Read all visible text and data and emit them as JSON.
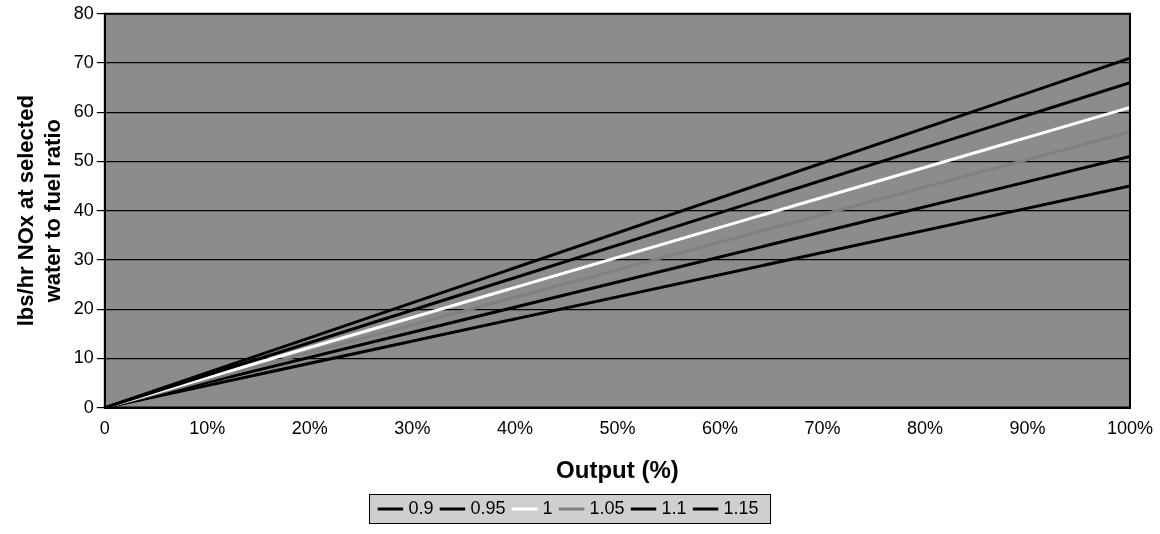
{
  "chart_data": {
    "type": "line",
    "xlabel": "Output (%)",
    "ylabel": "lbs/hr NOx at selected water to fuel ratio",
    "x": [
      0,
      100
    ],
    "series": [
      {
        "name": "0.9",
        "color": "#000000",
        "values": [
          0,
          71
        ]
      },
      {
        "name": "0.95",
        "color": "#000000",
        "values": [
          0,
          66
        ]
      },
      {
        "name": "1",
        "color": "#ffffff",
        "values": [
          0,
          61
        ]
      },
      {
        "name": "1.05",
        "color": "#808080",
        "values": [
          0,
          56
        ]
      },
      {
        "name": "1.1",
        "color": "#000000",
        "values": [
          0,
          51
        ]
      },
      {
        "name": "1.15",
        "color": "#000000",
        "values": [
          0,
          45
        ]
      }
    ],
    "xlim": [
      0,
      100
    ],
    "xticks": [
      {
        "value": 0,
        "label": "0"
      },
      {
        "value": 10,
        "label": "10%"
      },
      {
        "value": 20,
        "label": "20%"
      },
      {
        "value": 30,
        "label": "30%"
      },
      {
        "value": 40,
        "label": "40%"
      },
      {
        "value": 50,
        "label": "50%"
      },
      {
        "value": 60,
        "label": "60%"
      },
      {
        "value": 70,
        "label": "70%"
      },
      {
        "value": 80,
        "label": "80%"
      },
      {
        "value": 90,
        "label": "90%"
      },
      {
        "value": 100,
        "label": "100%"
      }
    ],
    "ylim": [
      0,
      80
    ],
    "yticks": [
      0,
      10,
      20,
      30,
      40,
      50,
      60,
      70,
      80
    ],
    "grid": "y",
    "legend": "bottom",
    "marker": "none",
    "line_style": "solid"
  }
}
